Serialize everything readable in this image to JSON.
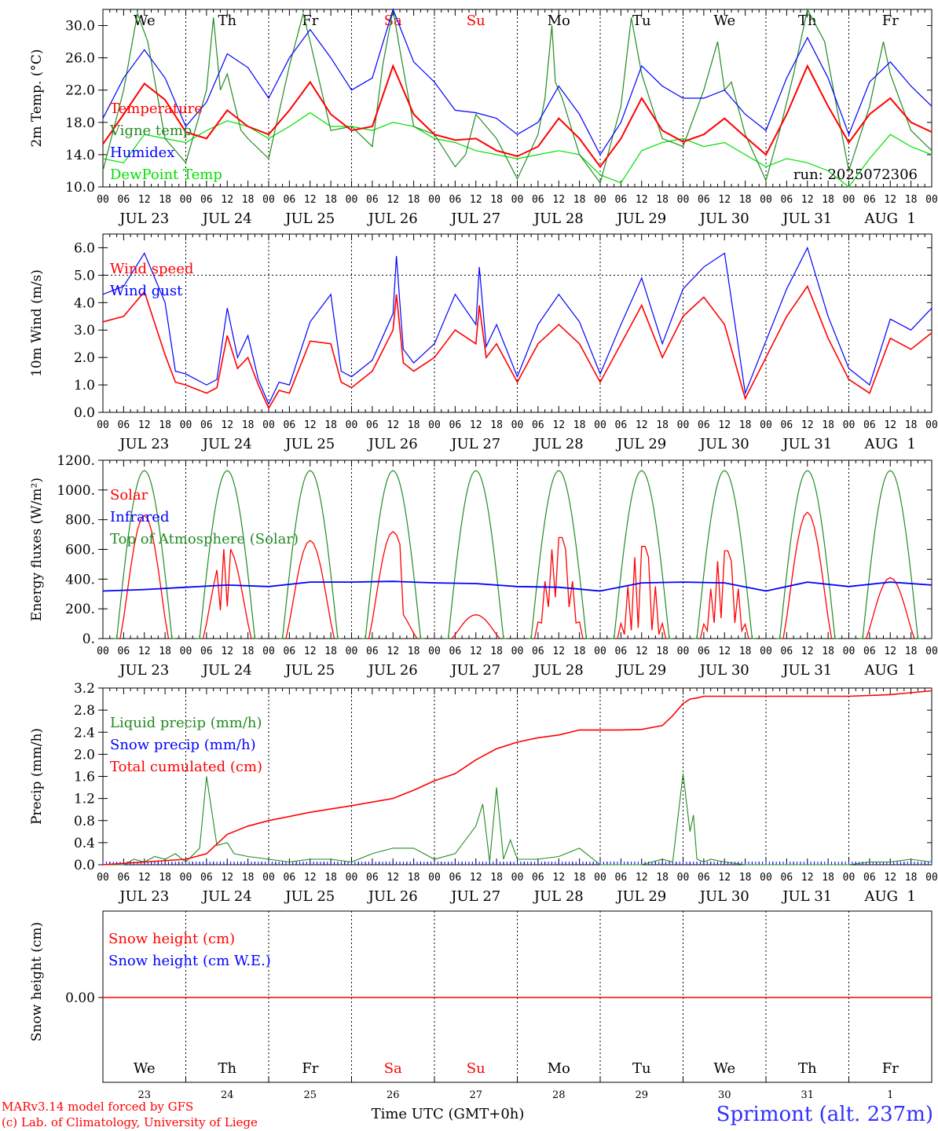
{
  "footer": {
    "model": "MARv3.14 model forced by GFS",
    "credit": "(c) Lab. of Climatology, University of Liege",
    "time_label": "Time UTC (GMT+0h)",
    "station": "Sprimont (alt. 237m)"
  },
  "colors": {
    "red": "#ff0000",
    "blue": "#0000ff",
    "dark_green": "#228b22",
    "light_green": "#00e000",
    "weekend": "#ff0000",
    "station": "#3030ff"
  },
  "time_axis": {
    "hour_labels": [
      "00",
      "06",
      "12",
      "18"
    ],
    "dates": [
      "JUL 23",
      "JUL 24",
      "JUL 25",
      "JUL 26",
      "JUL 27",
      "JUL 28",
      "JUL 29",
      "JUL 30",
      "JUL 31",
      "AUG  1"
    ],
    "weekdays": [
      "We",
      "Th",
      "Fr",
      "Sa",
      "Su",
      "Mo",
      "Tu",
      "We",
      "Th",
      "Fr"
    ],
    "weekend": [
      false,
      false,
      false,
      true,
      true,
      false,
      false,
      false,
      false,
      false
    ],
    "day_numbers": [
      "23",
      "24",
      "25",
      "26",
      "27",
      "28",
      "29",
      "30",
      "31",
      "1"
    ]
  },
  "chart_data": [
    {
      "type": "line",
      "id": "temp",
      "ylabel": "2m Temp. (°C)",
      "ylim": [
        10,
        32
      ],
      "yticks": [
        "10.0",
        "14.0",
        "18.0",
        "22.0",
        "26.0",
        "30.0"
      ],
      "run_label": "run: 2025072306",
      "x_unit": "hours since 2025-07-23 00 UTC",
      "series": [
        {
          "name": "Temperature",
          "color": "#ff0000",
          "x": [
            0,
            6,
            12,
            18,
            24,
            30,
            36,
            42,
            48,
            54,
            60,
            66,
            72,
            78,
            84,
            90,
            96,
            102,
            108,
            114,
            120,
            126,
            132,
            138,
            144,
            150,
            156,
            162,
            168,
            174,
            180,
            186,
            192,
            198,
            204,
            210,
            216,
            222,
            228,
            234,
            240
          ],
          "values": [
            15.3,
            19.0,
            22.8,
            20.8,
            16.8,
            16.0,
            19.5,
            17.5,
            16.5,
            19.5,
            23.0,
            19.0,
            17.0,
            17.5,
            25.0,
            19.0,
            16.5,
            15.8,
            16.0,
            14.5,
            13.8,
            15.0,
            18.5,
            16.0,
            12.5,
            16.0,
            21.0,
            17.0,
            15.6,
            16.5,
            18.5,
            16.2,
            14.0,
            19.0,
            25.0,
            20.0,
            15.5,
            19.0,
            21.0,
            18.0,
            16.8
          ]
        },
        {
          "name": "Vigne temp",
          "color": "#228b22",
          "x": [
            0,
            6,
            10,
            13,
            18,
            22,
            24,
            30,
            32,
            34,
            36,
            40,
            42,
            48,
            54,
            58,
            60,
            66,
            72,
            78,
            81,
            84,
            86,
            90,
            96,
            102,
            105,
            108,
            114,
            120,
            126,
            128,
            130,
            131,
            133,
            138,
            144,
            150,
            153,
            156,
            159,
            162,
            168,
            174,
            178,
            180,
            182,
            186,
            192,
            196,
            200,
            204,
            209,
            212,
            216,
            222,
            226,
            228,
            234,
            240
          ],
          "values": [
            12.0,
            22.0,
            31.5,
            28.0,
            16.0,
            14.0,
            13.0,
            22.0,
            31.0,
            22.0,
            24.0,
            17.0,
            16.0,
            13.5,
            25.0,
            31.5,
            28.0,
            17.0,
            17.5,
            15.0,
            25.0,
            32.0,
            27.0,
            17.5,
            16.5,
            12.5,
            14.0,
            19.0,
            16.0,
            11.0,
            16.5,
            21.0,
            30.0,
            23.0,
            21.0,
            14.0,
            10.5,
            20.0,
            31.0,
            24.0,
            20.0,
            16.0,
            15.0,
            22.0,
            28.0,
            22.0,
            23.0,
            16.5,
            10.8,
            17.0,
            24.0,
            32.0,
            28.0,
            21.0,
            12.0,
            20.0,
            28.0,
            24.0,
            17.0,
            14.5
          ]
        },
        {
          "name": "Humidex",
          "color": "#0000ff",
          "x": [
            0,
            6,
            12,
            18,
            24,
            30,
            36,
            42,
            48,
            54,
            60,
            66,
            72,
            78,
            84,
            90,
            96,
            102,
            108,
            114,
            120,
            126,
            132,
            138,
            144,
            150,
            156,
            162,
            168,
            174,
            180,
            186,
            192,
            198,
            204,
            210,
            216,
            222,
            228,
            234,
            240
          ],
          "values": [
            18.5,
            23.5,
            27.0,
            23.5,
            17.5,
            20.5,
            26.5,
            24.8,
            21.0,
            26.0,
            29.5,
            26.0,
            22.0,
            23.5,
            32.0,
            25.5,
            23.0,
            19.5,
            19.2,
            18.5,
            16.5,
            18.0,
            22.5,
            19.0,
            14.0,
            18.0,
            25.0,
            22.5,
            21.0,
            21.0,
            22.0,
            19.0,
            17.0,
            23.5,
            28.5,
            23.5,
            16.5,
            23.0,
            25.5,
            22.5,
            20.0
          ]
        },
        {
          "name": "DewPoint Temp",
          "color": "#00e000",
          "x": [
            0,
            6,
            12,
            18,
            24,
            30,
            36,
            42,
            48,
            54,
            60,
            66,
            72,
            78,
            84,
            90,
            96,
            102,
            108,
            114,
            120,
            126,
            132,
            138,
            144,
            150,
            156,
            162,
            168,
            174,
            180,
            186,
            192,
            198,
            204,
            210,
            216,
            222,
            228,
            234,
            240
          ],
          "values": [
            13.5,
            13.0,
            16.5,
            16.0,
            15.5,
            17.0,
            18.2,
            17.5,
            16.0,
            17.5,
            19.2,
            17.5,
            17.5,
            17.0,
            18.0,
            17.5,
            16.0,
            15.5,
            14.5,
            14.0,
            13.5,
            14.0,
            14.5,
            14.0,
            11.5,
            10.5,
            14.5,
            15.5,
            16.0,
            15.0,
            15.5,
            14.0,
            12.5,
            13.5,
            13.0,
            12.0,
            10.0,
            13.5,
            16.5,
            15.0,
            14.0
          ]
        }
      ]
    },
    {
      "type": "line",
      "id": "wind",
      "ylabel": "10m Wind (m/s)",
      "ylim": [
        0,
        6.5
      ],
      "yticks": [
        "0.0",
        "1.0",
        "2.0",
        "3.0",
        "4.0",
        "5.0",
        "6.0"
      ],
      "reference_line": 5.0,
      "x_unit": "hours since 2025-07-23 00 UTC",
      "series": [
        {
          "name": "Wind speed",
          "color": "#ff0000",
          "x": [
            0,
            6,
            12,
            18,
            21,
            24,
            30,
            33,
            36,
            39,
            42,
            45,
            48,
            51,
            54,
            60,
            66,
            69,
            72,
            78,
            84,
            85,
            87,
            90,
            96,
            102,
            108,
            109,
            111,
            114,
            120,
            126,
            132,
            138,
            144,
            150,
            156,
            162,
            168,
            174,
            180,
            186,
            192,
            198,
            204,
            210,
            216,
            222,
            228,
            234,
            240
          ],
          "values": [
            3.3,
            3.5,
            4.4,
            2.1,
            1.1,
            1.0,
            0.7,
            0.9,
            2.8,
            1.6,
            2.0,
            1.0,
            0.15,
            0.8,
            0.7,
            2.6,
            2.5,
            1.1,
            0.9,
            1.5,
            3.0,
            4.3,
            1.8,
            1.5,
            2.0,
            3.0,
            2.5,
            3.9,
            2.0,
            2.5,
            1.1,
            2.5,
            3.2,
            2.5,
            1.1,
            2.5,
            3.9,
            2.0,
            3.5,
            4.2,
            3.2,
            0.5,
            2.0,
            3.5,
            4.6,
            2.7,
            1.2,
            0.7,
            2.7,
            2.3,
            2.9
          ]
        },
        {
          "name": "Wind gust",
          "color": "#0000ff",
          "x": [
            0,
            6,
            12,
            18,
            21,
            24,
            30,
            33,
            36,
            39,
            42,
            45,
            48,
            51,
            54,
            60,
            66,
            69,
            72,
            78,
            84,
            85,
            87,
            90,
            96,
            102,
            108,
            109,
            111,
            114,
            120,
            126,
            132,
            138,
            144,
            150,
            156,
            162,
            168,
            174,
            180,
            186,
            192,
            198,
            204,
            210,
            216,
            222,
            228,
            234,
            240
          ],
          "values": [
            4.3,
            4.6,
            5.8,
            4.0,
            1.5,
            1.4,
            1.0,
            1.2,
            3.8,
            2.0,
            2.8,
            1.2,
            0.3,
            1.1,
            1.0,
            3.3,
            4.3,
            1.5,
            1.3,
            1.9,
            3.6,
            5.7,
            2.3,
            1.8,
            2.5,
            4.3,
            3.2,
            5.3,
            2.4,
            3.2,
            1.3,
            3.2,
            4.3,
            3.3,
            1.4,
            3.2,
            4.9,
            2.5,
            4.5,
            5.3,
            5.8,
            0.7,
            2.6,
            4.5,
            6.0,
            3.5,
            1.6,
            1.0,
            3.4,
            3.0,
            3.8
          ]
        }
      ]
    },
    {
      "type": "line",
      "id": "flux",
      "ylabel": "Energy fluxes (W/m²)",
      "ylim": [
        0,
        1200
      ],
      "yticks": [
        "0.",
        "200.",
        "400.",
        "600.",
        "800.",
        "1000.",
        "1200."
      ],
      "x_unit": "hours since 2025-07-23 00 UTC",
      "daylight_hours": [
        4,
        20
      ],
      "series": [
        {
          "name": "Solar",
          "color": "#ff0000",
          "day_peaks": [
            830,
            620,
            660,
            720,
            160,
            680,
            620,
            590,
            850,
            410
          ],
          "spikes": [
            [
              0,
              0
            ],
            [
              0,
              0
            ],
            [
              0,
              0
            ],
            [
              0,
              0
            ],
            [
              0,
              0
            ],
            [
              0.7,
              0.3
            ],
            [
              0.2,
              1.0
            ],
            [
              0.4,
              0.9
            ],
            [
              0,
              0
            ],
            [
              0,
              0
            ]
          ]
        },
        {
          "name": "Infrared",
          "color": "#0000ff",
          "x": [
            0,
            12,
            24,
            36,
            48,
            60,
            72,
            84,
            96,
            108,
            120,
            132,
            144,
            156,
            168,
            180,
            192,
            204,
            216,
            228,
            240
          ],
          "values": [
            320,
            330,
            345,
            360,
            350,
            380,
            380,
            385,
            375,
            370,
            350,
            345,
            320,
            375,
            380,
            375,
            320,
            380,
            350,
            380,
            360
          ]
        },
        {
          "name": "Top of Atmosphere (Solar)",
          "color": "#228b22",
          "day_peak": 1130
        }
      ]
    },
    {
      "type": "line",
      "id": "precip",
      "ylabel": "Precip (mm/h)",
      "ylim": [
        0,
        3.2
      ],
      "yticks": [
        "0.0",
        "0.4",
        "0.8",
        "1.2",
        "1.6",
        "2.0",
        "2.4",
        "2.8",
        "3.2"
      ],
      "x_unit": "hours since 2025-07-23 00 UTC",
      "series": [
        {
          "name": "Liquid precip (mm/h)",
          "color": "#228b22",
          "x": [
            0,
            6,
            9,
            12,
            15,
            18,
            21,
            24,
            28,
            30,
            33,
            36,
            38,
            42,
            48,
            54,
            60,
            66,
            72,
            78,
            84,
            90,
            96,
            102,
            108,
            110,
            112,
            114,
            116,
            118,
            120,
            126,
            132,
            138,
            144,
            150,
            156,
            162,
            165,
            168,
            170,
            171,
            172,
            174,
            176,
            180,
            186,
            192,
            198,
            204,
            210,
            216,
            222,
            228,
            234,
            240
          ],
          "values": [
            0,
            0,
            0.1,
            0.05,
            0.15,
            0.1,
            0.2,
            0.05,
            0.3,
            1.6,
            0.35,
            0.4,
            0.2,
            0.15,
            0.1,
            0.05,
            0.1,
            0.1,
            0.05,
            0.2,
            0.3,
            0.3,
            0.1,
            0.2,
            0.7,
            1.1,
            0.05,
            1.4,
            0.1,
            0.45,
            0.1,
            0.1,
            0.15,
            0.3,
            0,
            0,
            0,
            0.1,
            0.05,
            1.65,
            0.6,
            0.9,
            0.1,
            0.05,
            0.1,
            0.05,
            0,
            0,
            0,
            0,
            0,
            0,
            0.05,
            0.05,
            0.1,
            0.05
          ]
        },
        {
          "name": "Snow precip (mm/h)",
          "color": "#0000ff",
          "x": [
            0,
            240
          ],
          "values": [
            0,
            0
          ]
        },
        {
          "name": "Total cumulated (cm)",
          "color": "#ff0000",
          "x": [
            0,
            12,
            24,
            30,
            36,
            42,
            48,
            60,
            72,
            84,
            90,
            96,
            102,
            108,
            114,
            120,
            126,
            132,
            138,
            144,
            150,
            156,
            162,
            165,
            168,
            170,
            172,
            174,
            180,
            192,
            204,
            216,
            228,
            240
          ],
          "values": [
            0,
            0.05,
            0.1,
            0.2,
            0.55,
            0.7,
            0.8,
            0.95,
            1.07,
            1.2,
            1.35,
            1.52,
            1.65,
            1.9,
            2.1,
            2.22,
            2.3,
            2.35,
            2.44,
            2.44,
            2.44,
            2.45,
            2.52,
            2.7,
            2.92,
            3.0,
            3.02,
            3.05,
            3.05,
            3.05,
            3.05,
            3.05,
            3.08,
            3.15
          ]
        }
      ]
    },
    {
      "type": "line",
      "id": "snow",
      "ylabel": "Snow height (cm)",
      "ytick": "0.00",
      "x_unit": "hours since 2025-07-23 00 UTC",
      "series": [
        {
          "name": "Snow height (cm)",
          "color": "#ff0000",
          "x": [
            0,
            240
          ],
          "values": [
            0,
            0
          ]
        },
        {
          "name": "Snow height (cm W.E.)",
          "color": "#0000ff",
          "x": [
            0,
            240
          ],
          "values": [
            0,
            0
          ]
        }
      ]
    }
  ]
}
